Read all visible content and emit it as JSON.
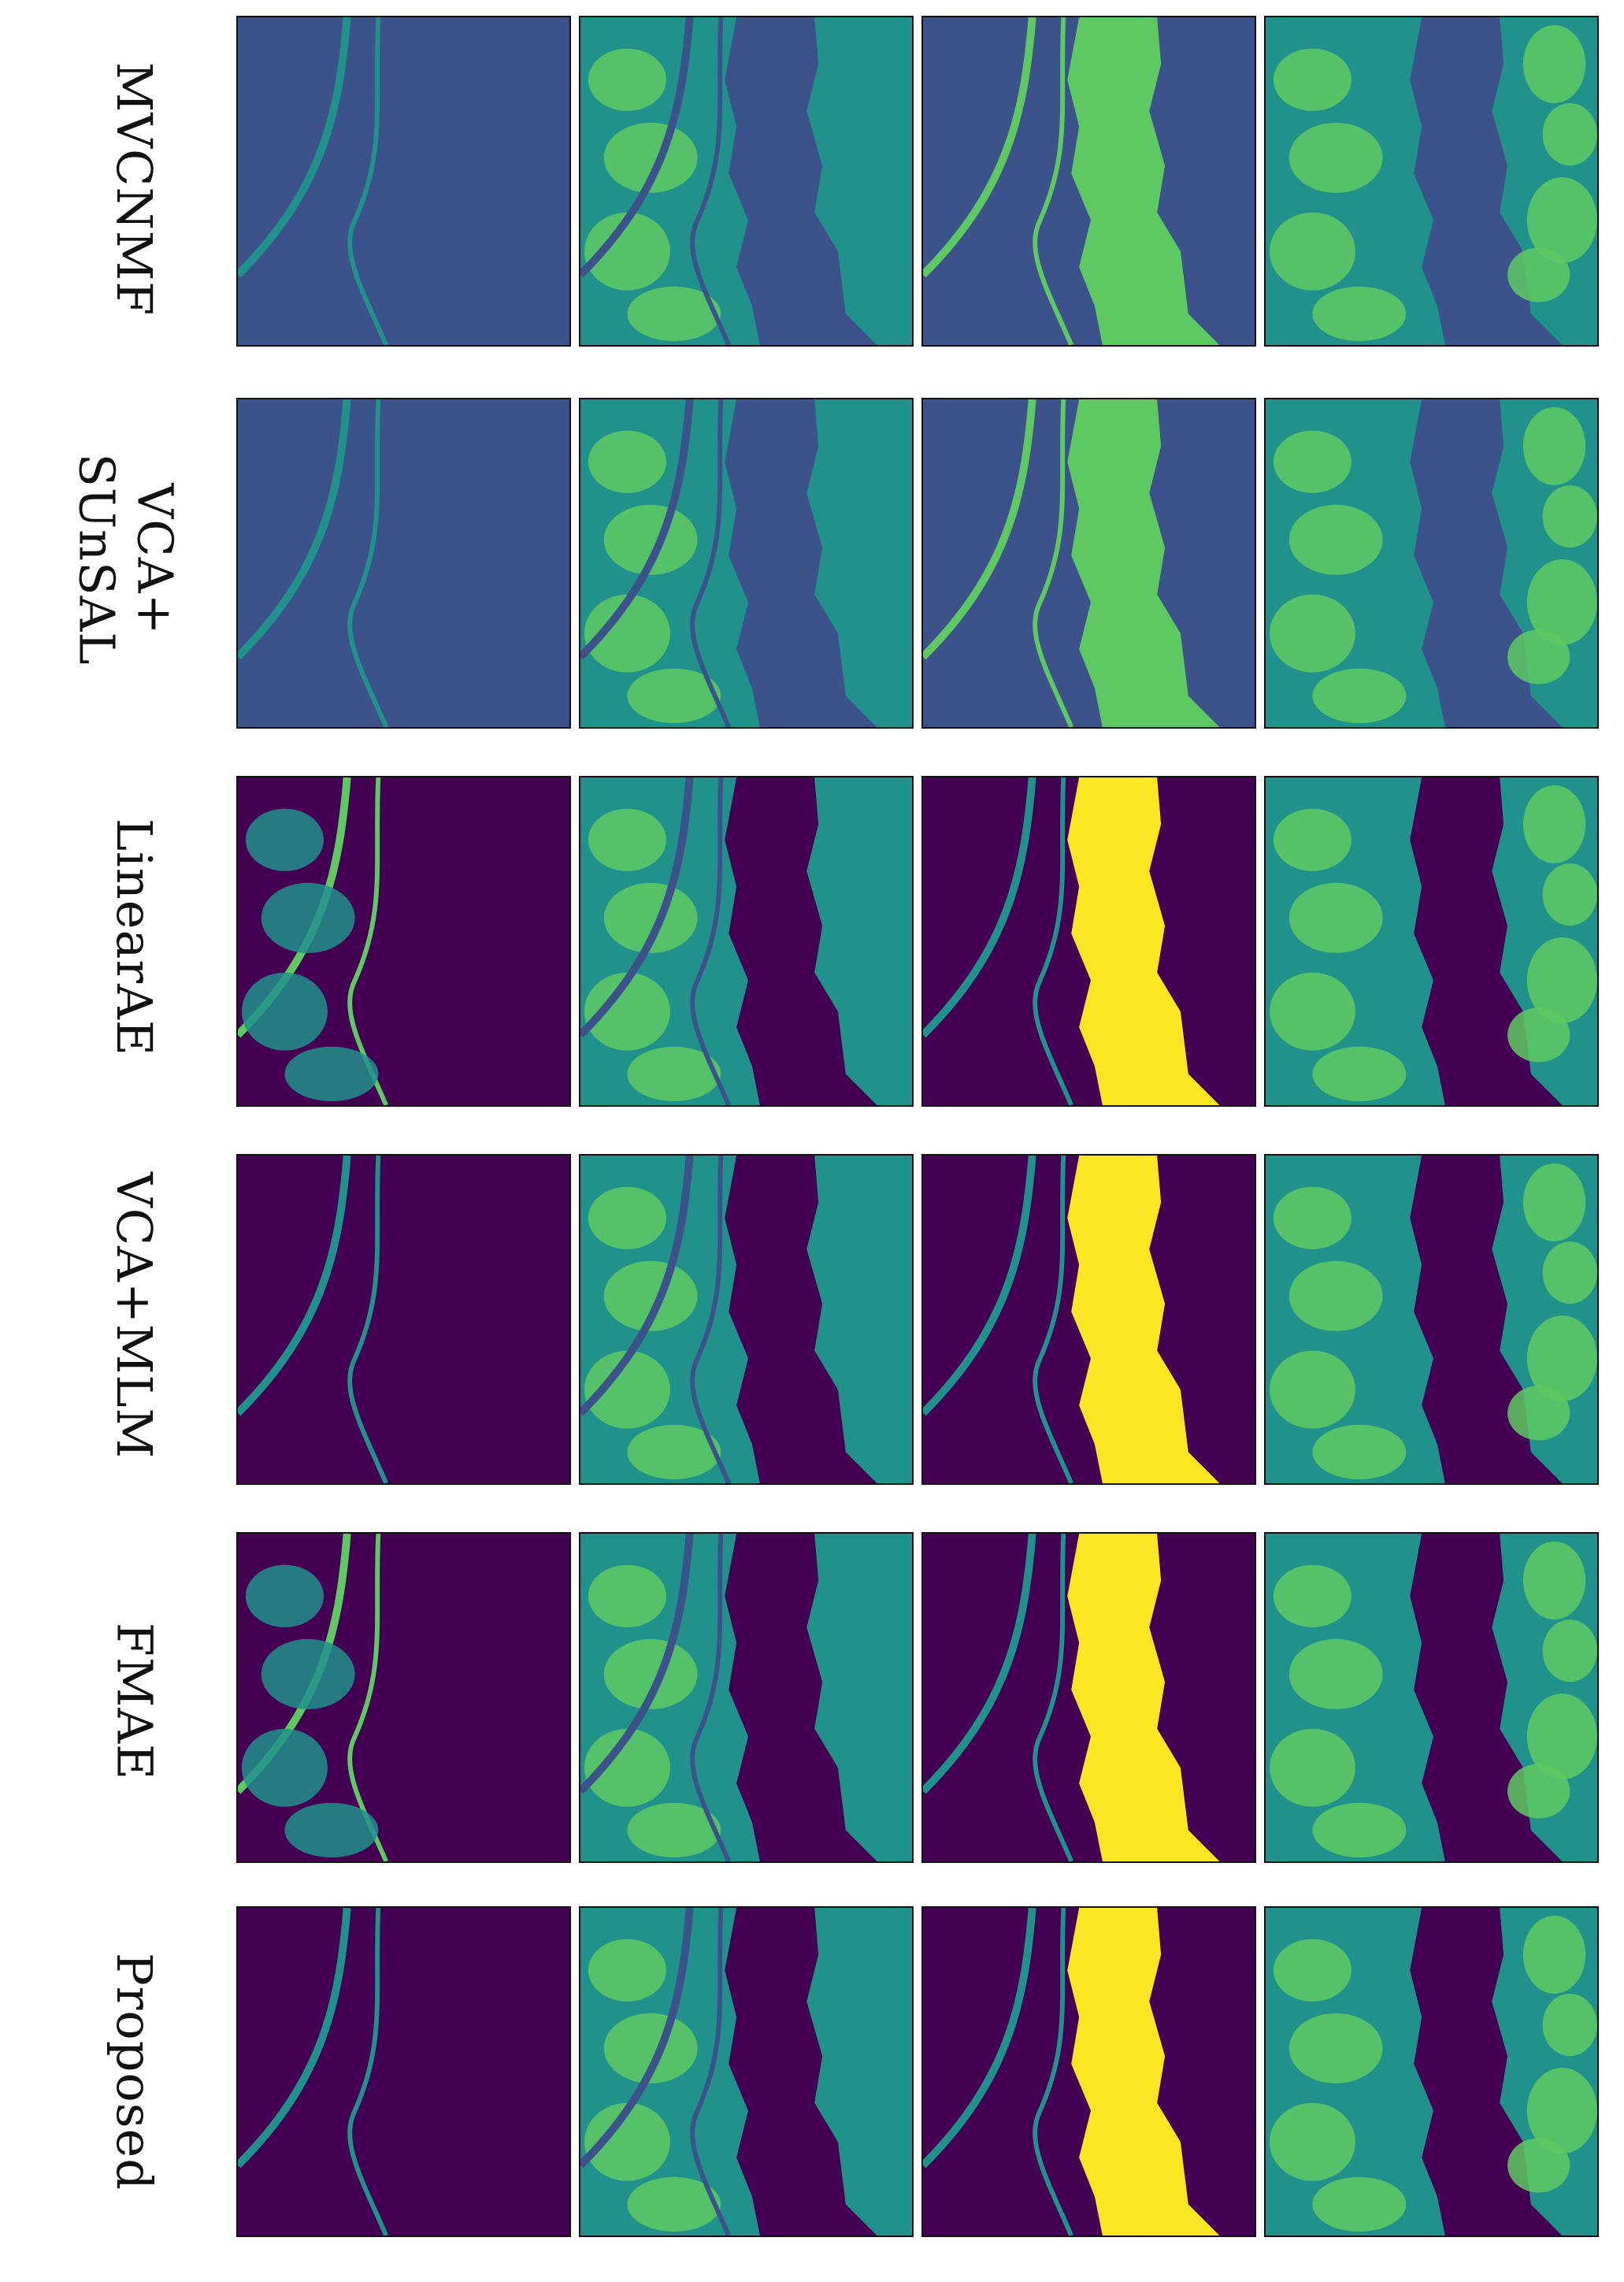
{
  "figure": {
    "rows": [
      {
        "label_lines": [
          "MVCNMF"
        ],
        "maps": [
          "abundance-map-1",
          "abundance-map-2",
          "abundance-map-3",
          "abundance-map-4"
        ]
      },
      {
        "label_lines": [
          "VCA+",
          "SUnSAL"
        ],
        "maps": [
          "abundance-map-1",
          "abundance-map-2",
          "abundance-map-3",
          "abundance-map-4"
        ]
      },
      {
        "label_lines": [
          "LinearAE"
        ],
        "maps": [
          "abundance-map-1",
          "abundance-map-2",
          "abundance-map-3",
          "abundance-map-4"
        ]
      },
      {
        "label_lines": [
          "VCA+MLM"
        ],
        "maps": [
          "abundance-map-1",
          "abundance-map-2",
          "abundance-map-3",
          "abundance-map-4"
        ]
      },
      {
        "label_lines": [
          "FMAE"
        ],
        "maps": [
          "abundance-map-1",
          "abundance-map-2",
          "abundance-map-3",
          "abundance-map-4"
        ]
      },
      {
        "label_lines": [
          "Proposed"
        ],
        "maps": [
          "abundance-map-1",
          "abundance-map-2",
          "abundance-map-3",
          "abundance-map-4"
        ]
      }
    ],
    "colormap": {
      "low": "#440154",
      "mid_low": "#3b528b",
      "mid": "#21918c",
      "mid_high": "#5ec962",
      "high": "#fde725"
    }
  }
}
